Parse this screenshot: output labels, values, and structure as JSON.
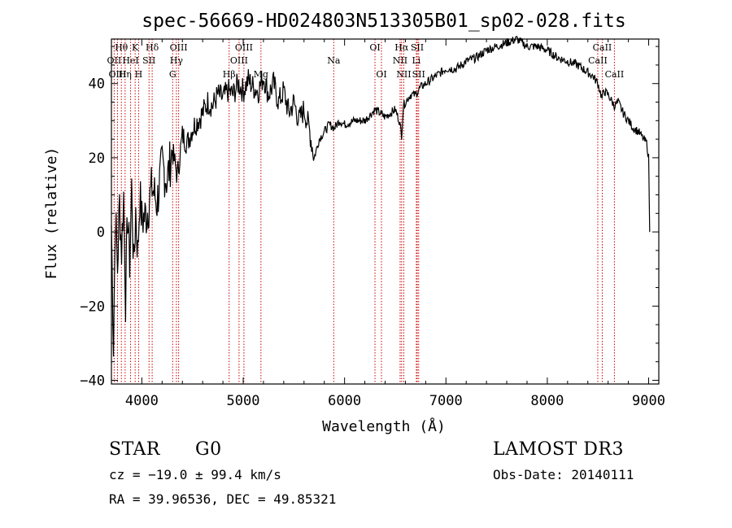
{
  "chart_data": {
    "type": "line",
    "title": "spec-56669-HD024803N513305B01_sp02-028.fits",
    "xlabel": "Wavelength (Å)",
    "ylabel": "Flux (relative)",
    "xlim": [
      3700,
      9100
    ],
    "ylim": [
      -41,
      52
    ],
    "xticks": [
      4000,
      5000,
      6000,
      7000,
      8000,
      9000
    ],
    "yticks": [
      -40,
      -20,
      0,
      20,
      40
    ],
    "grid": false,
    "series": [
      {
        "name": "flux",
        "x": [
          3700,
          3720,
          3740,
          3760,
          3780,
          3800,
          3820,
          3840,
          3860,
          3880,
          3900,
          3920,
          3940,
          3960,
          3980,
          4000,
          4050,
          4100,
          4150,
          4200,
          4250,
          4300,
          4350,
          4400,
          4450,
          4500,
          4550,
          4600,
          4650,
          4700,
          4750,
          4800,
          4850,
          4900,
          4950,
          5000,
          5050,
          5100,
          5150,
          5200,
          5250,
          5300,
          5350,
          5400,
          5450,
          5500,
          5550,
          5600,
          5650,
          5700,
          5750,
          5800,
          5850,
          5900,
          5950,
          6000,
          6100,
          6200,
          6300,
          6400,
          6500,
          6540,
          6563,
          6580,
          6600,
          6650,
          6700,
          6750,
          6800,
          6900,
          7000,
          7100,
          7200,
          7300,
          7400,
          7500,
          7600,
          7700,
          7750,
          7800,
          7900,
          8000,
          8100,
          8200,
          8300,
          8400,
          8450,
          8500,
          8540,
          8560,
          8600,
          8662,
          8700,
          8750,
          8800,
          8850,
          8900,
          8950,
          8980,
          9000,
          9010
        ],
        "y": [
          2,
          -30,
          5,
          -10,
          8,
          -5,
          10,
          -18,
          5,
          -8,
          12,
          -10,
          6,
          -6,
          10,
          3,
          5,
          12,
          8,
          18,
          14,
          22,
          15,
          26,
          24,
          28,
          30,
          32,
          35,
          34,
          37,
          36,
          38,
          37,
          40,
          38,
          41,
          39,
          38,
          42,
          37,
          40,
          35,
          38,
          32,
          35,
          30,
          33,
          28,
          20,
          25,
          27,
          29,
          28,
          30,
          29,
          30,
          30,
          33,
          31,
          33,
          30,
          26,
          34,
          35,
          37,
          37,
          39,
          40,
          42,
          44,
          44,
          46,
          47,
          49,
          50,
          51,
          52,
          51,
          50,
          50,
          49,
          47,
          46,
          45,
          43,
          42,
          40,
          36,
          38,
          37,
          34,
          35,
          32,
          30,
          28,
          27,
          25,
          24,
          20,
          0
        ]
      }
    ],
    "lines": [
      {
        "label": "Hθ",
        "wavelength": 3798,
        "row": 1
      },
      {
        "label": "OII",
        "wavelength": 3727,
        "row": 2
      },
      {
        "label": "OIII",
        "wavelength": 3760,
        "row": 3
      },
      {
        "label": "Hη",
        "wavelength": 3835,
        "row": 3
      },
      {
        "label": "HeI",
        "wavelength": 3889,
        "row": 2
      },
      {
        "label": "K",
        "wavelength": 3934,
        "row": 1
      },
      {
        "label": "H",
        "wavelength": 3968,
        "row": 3
      },
      {
        "label": "SII",
        "wavelength": 4071,
        "row": 2
      },
      {
        "label": "Hδ",
        "wavelength": 4102,
        "row": 1
      },
      {
        "label": "OIII",
        "wavelength": 4363,
        "row": 1
      },
      {
        "label": "Hγ",
        "wavelength": 4341,
        "row": 2
      },
      {
        "label": "G",
        "wavelength": 4304,
        "row": 3
      },
      {
        "label": "Hβ",
        "wavelength": 4861,
        "row": 3
      },
      {
        "label": "OIII",
        "wavelength": 5007,
        "row": 1
      },
      {
        "label": "OIII",
        "wavelength": 4959,
        "row": 2
      },
      {
        "label": "Mg",
        "wavelength": 5175,
        "row": 3
      },
      {
        "label": "Na",
        "wavelength": 5893,
        "row": 2
      },
      {
        "label": "OI",
        "wavelength": 6300,
        "row": 1
      },
      {
        "label": "OI",
        "wavelength": 6364,
        "row": 3
      },
      {
        "label": "Hα",
        "wavelength": 6563,
        "row": 1
      },
      {
        "label": "NII",
        "wavelength": 6548,
        "row": 2
      },
      {
        "label": "NII",
        "wavelength": 6584,
        "row": 3
      },
      {
        "label": "SII",
        "wavelength": 6717,
        "row": 1
      },
      {
        "label": "Li",
        "wavelength": 6708,
        "row": 2
      },
      {
        "label": "SII",
        "wavelength": 6731,
        "row": 3
      },
      {
        "label": "CaII",
        "wavelength": 8542,
        "row": 1
      },
      {
        "label": "CaII",
        "wavelength": 8498,
        "row": 2
      },
      {
        "label": "CaII",
        "wavelength": 8662,
        "row": 3
      }
    ]
  },
  "info": {
    "object_class": "STAR",
    "subclass": "G0",
    "survey": "LAMOST DR3",
    "redshift": "cz = −19.0 ± 99.4 km/s",
    "obs_date": "Obs-Date: 20140111",
    "coords": "RA =  39.96536, DEC =  49.85321"
  },
  "colors": {
    "spectrum": "#000000",
    "line_markers": "#cc0000",
    "axes": "#000000"
  }
}
